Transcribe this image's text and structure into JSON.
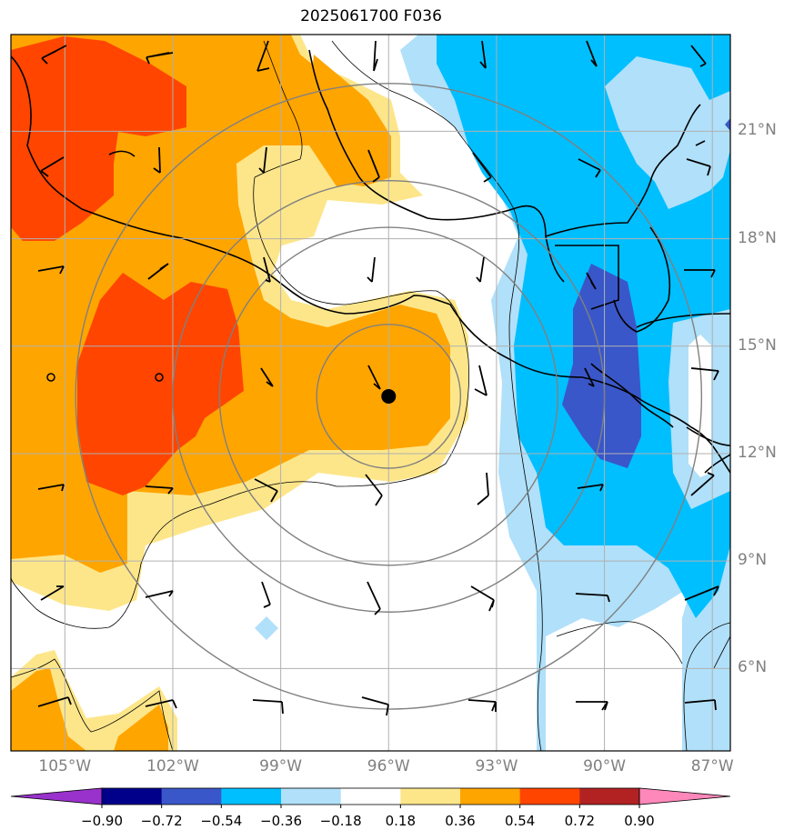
{
  "title": "2025061700 F036",
  "map": {
    "lon_range": [
      -106.5,
      -86.5
    ],
    "lat_range": [
      3.7,
      23.7
    ],
    "lon_ticks": [
      {
        "value": -105,
        "label": "105°W"
      },
      {
        "value": -102,
        "label": "102°W"
      },
      {
        "value": -99,
        "label": "99°W"
      },
      {
        "value": -96,
        "label": "96°W"
      },
      {
        "value": -93,
        "label": "93°W"
      },
      {
        "value": -90,
        "label": "90°W"
      },
      {
        "value": -87,
        "label": "87°W"
      }
    ],
    "lat_ticks": [
      {
        "value": 21,
        "label": "21°N"
      },
      {
        "value": 18,
        "label": "18°N"
      },
      {
        "value": 15,
        "label": "15°N"
      },
      {
        "value": 12,
        "label": "12°N"
      },
      {
        "value": 9,
        "label": "9°N"
      },
      {
        "value": 6,
        "label": "6°N"
      }
    ],
    "grid": true,
    "storm_center": {
      "lon": -96.0,
      "lat": 13.6
    },
    "range_rings_deg": [
      2,
      4.7,
      6,
      8.7
    ]
  },
  "colorbar": {
    "ticks": [
      "−0.90",
      "−0.72",
      "−0.54",
      "−0.36",
      "−0.18",
      "0.18",
      "0.36",
      "0.54",
      "0.72",
      "0.90"
    ],
    "colors": [
      "#9932cc",
      "#00008b",
      "#3a57c9",
      "#00bfff",
      "#b0e0fa",
      "#ffffff",
      "#fde68a",
      "#ffa500",
      "#ff4500",
      "#b22222",
      "#ff88bb"
    ],
    "extend": "both"
  },
  "colors": {
    "orange": "#ffa500",
    "orangered": "#ff4500",
    "yellow": "#fde68a",
    "deepskyblue": "#00bfff",
    "lightblue": "#b0e0fa",
    "royalblue": "#3a57c9",
    "grid": "#b0b0b0",
    "ring": "#808080"
  }
}
